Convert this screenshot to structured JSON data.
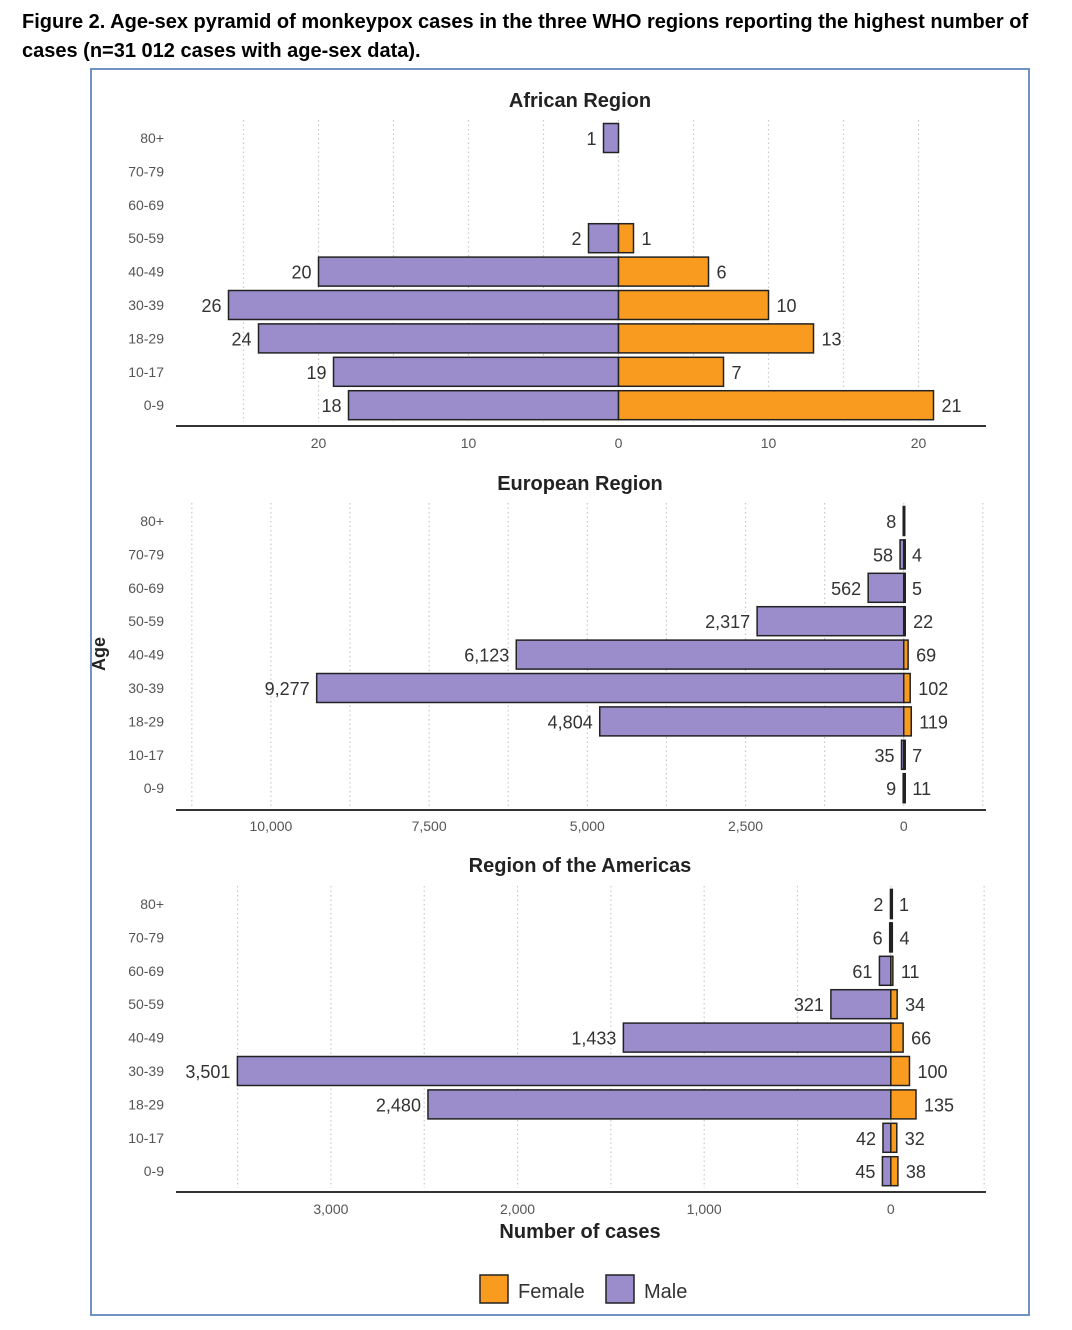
{
  "figure_title": "Figure 2. Age-sex pyramid of monkeypox cases in the three WHO regions reporting the highest number of cases (n=31 012 cases with age-sex data).",
  "colors": {
    "female": "#f89b1f",
    "male": "#9b8ccb",
    "frame": "#7191c6"
  },
  "chart_data": {
    "type": "bar",
    "orientation": "horizontal",
    "ylabel": "Age",
    "xlabel": "Number of cases",
    "categories": [
      "80+",
      "70-79",
      "60-69",
      "50-59",
      "40-49",
      "30-39",
      "18-29",
      "10-17",
      "0-9"
    ],
    "legend": {
      "position": "bottom",
      "entries": [
        "Female",
        "Male"
      ]
    },
    "grid": true,
    "panels": [
      {
        "title": "African Region",
        "male_left": true,
        "male": [
          1,
          null,
          null,
          2,
          20,
          26,
          24,
          19,
          18
        ],
        "female": [
          null,
          null,
          null,
          1,
          6,
          10,
          13,
          7,
          21
        ],
        "male_labels": [
          "1",
          "",
          "",
          "2",
          "20",
          "26",
          "24",
          "19",
          "18"
        ],
        "female_labels": [
          "",
          "",
          "",
          "1",
          "6",
          "10",
          "13",
          "7",
          "21"
        ],
        "ticks": [
          {
            "v": -20,
            "label": "20"
          },
          {
            "v": -10,
            "label": "10"
          },
          {
            "v": 0,
            "label": "0"
          },
          {
            "v": 10,
            "label": "10"
          },
          {
            "v": 20,
            "label": "20"
          }
        ]
      },
      {
        "title": "European Region",
        "male_left": true,
        "male": [
          8,
          58,
          562,
          2317,
          6123,
          9277,
          4804,
          35,
          9
        ],
        "female": [
          null,
          4,
          5,
          22,
          69,
          102,
          119,
          7,
          11
        ],
        "male_labels": [
          "8",
          "58",
          "562",
          "2,317",
          "6,123",
          "9,277",
          "4,804",
          "35",
          "9"
        ],
        "female_labels": [
          "",
          "4",
          "5",
          "22",
          "69",
          "102",
          "119",
          "7",
          "11"
        ],
        "ticks": [
          {
            "v": -10000,
            "label": "10,000"
          },
          {
            "v": -7500,
            "label": "7,500"
          },
          {
            "v": -5000,
            "label": "5,000"
          },
          {
            "v": -2500,
            "label": "2,500"
          },
          {
            "v": 0,
            "label": "0"
          }
        ]
      },
      {
        "title": "Region of the Americas",
        "male_left": true,
        "male": [
          2,
          6,
          61,
          321,
          1433,
          3501,
          2480,
          42,
          45
        ],
        "female": [
          1,
          4,
          11,
          34,
          66,
          100,
          135,
          32,
          38
        ],
        "male_labels": [
          "2",
          "6",
          "61",
          "321",
          "1,433",
          "3,501",
          "2,480",
          "42",
          "45"
        ],
        "female_labels": [
          "1",
          "4",
          "11",
          "34",
          "66",
          "100",
          "135",
          "32",
          "38"
        ],
        "ticks": [
          {
            "v": -3000,
            "label": "3,000"
          },
          {
            "v": -2000,
            "label": "2,000"
          },
          {
            "v": -1000,
            "label": "1,000"
          },
          {
            "v": 0,
            "label": "0"
          }
        ]
      }
    ]
  }
}
